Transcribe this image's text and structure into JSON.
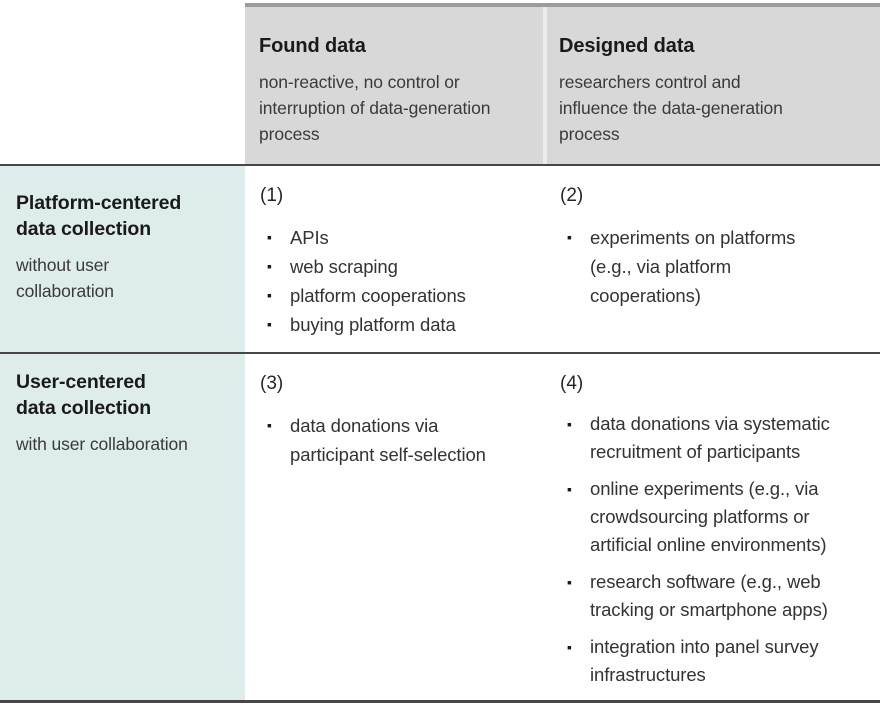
{
  "colors": {
    "header_bg": "#d8d8d8",
    "row_header_bg": "#deeceb",
    "rule": "#474747",
    "top_rule": "#9c9c9c",
    "header_gap": "#ececec",
    "text_strong": "#1a1a1a",
    "text_body": "#3a3a3a"
  },
  "bullet_glyph": "▪",
  "columns": [
    {
      "title": "Found data",
      "description": "non-reactive, no control or interruption of data-generation process"
    },
    {
      "title": "Designed data",
      "description": "researchers control and influence the data-generation process"
    }
  ],
  "rows": [
    {
      "title": "Platform-centered data collection",
      "subtitle": "without user collaboration",
      "cells": [
        {
          "number": "(1)",
          "items": [
            "APIs",
            "web scraping",
            "platform cooperations",
            "buying platform data"
          ]
        },
        {
          "number": "(2)",
          "items": [
            "experiments on platforms (e.g., via platform cooperations)"
          ]
        }
      ]
    },
    {
      "title": "User-centered data collection",
      "subtitle": "with user collaboration",
      "cells": [
        {
          "number": "(3)",
          "items": [
            "data donations via participant self-selection"
          ]
        },
        {
          "number": "(4)",
          "items": [
            "data donations via systematic recruitment of participants",
            "online experiments (e.g., via crowdsourcing platforms or artificial online environments)",
            "research software (e.g., web tracking or smartphone apps)",
            "integration into panel survey infrastructures"
          ]
        }
      ]
    }
  ]
}
